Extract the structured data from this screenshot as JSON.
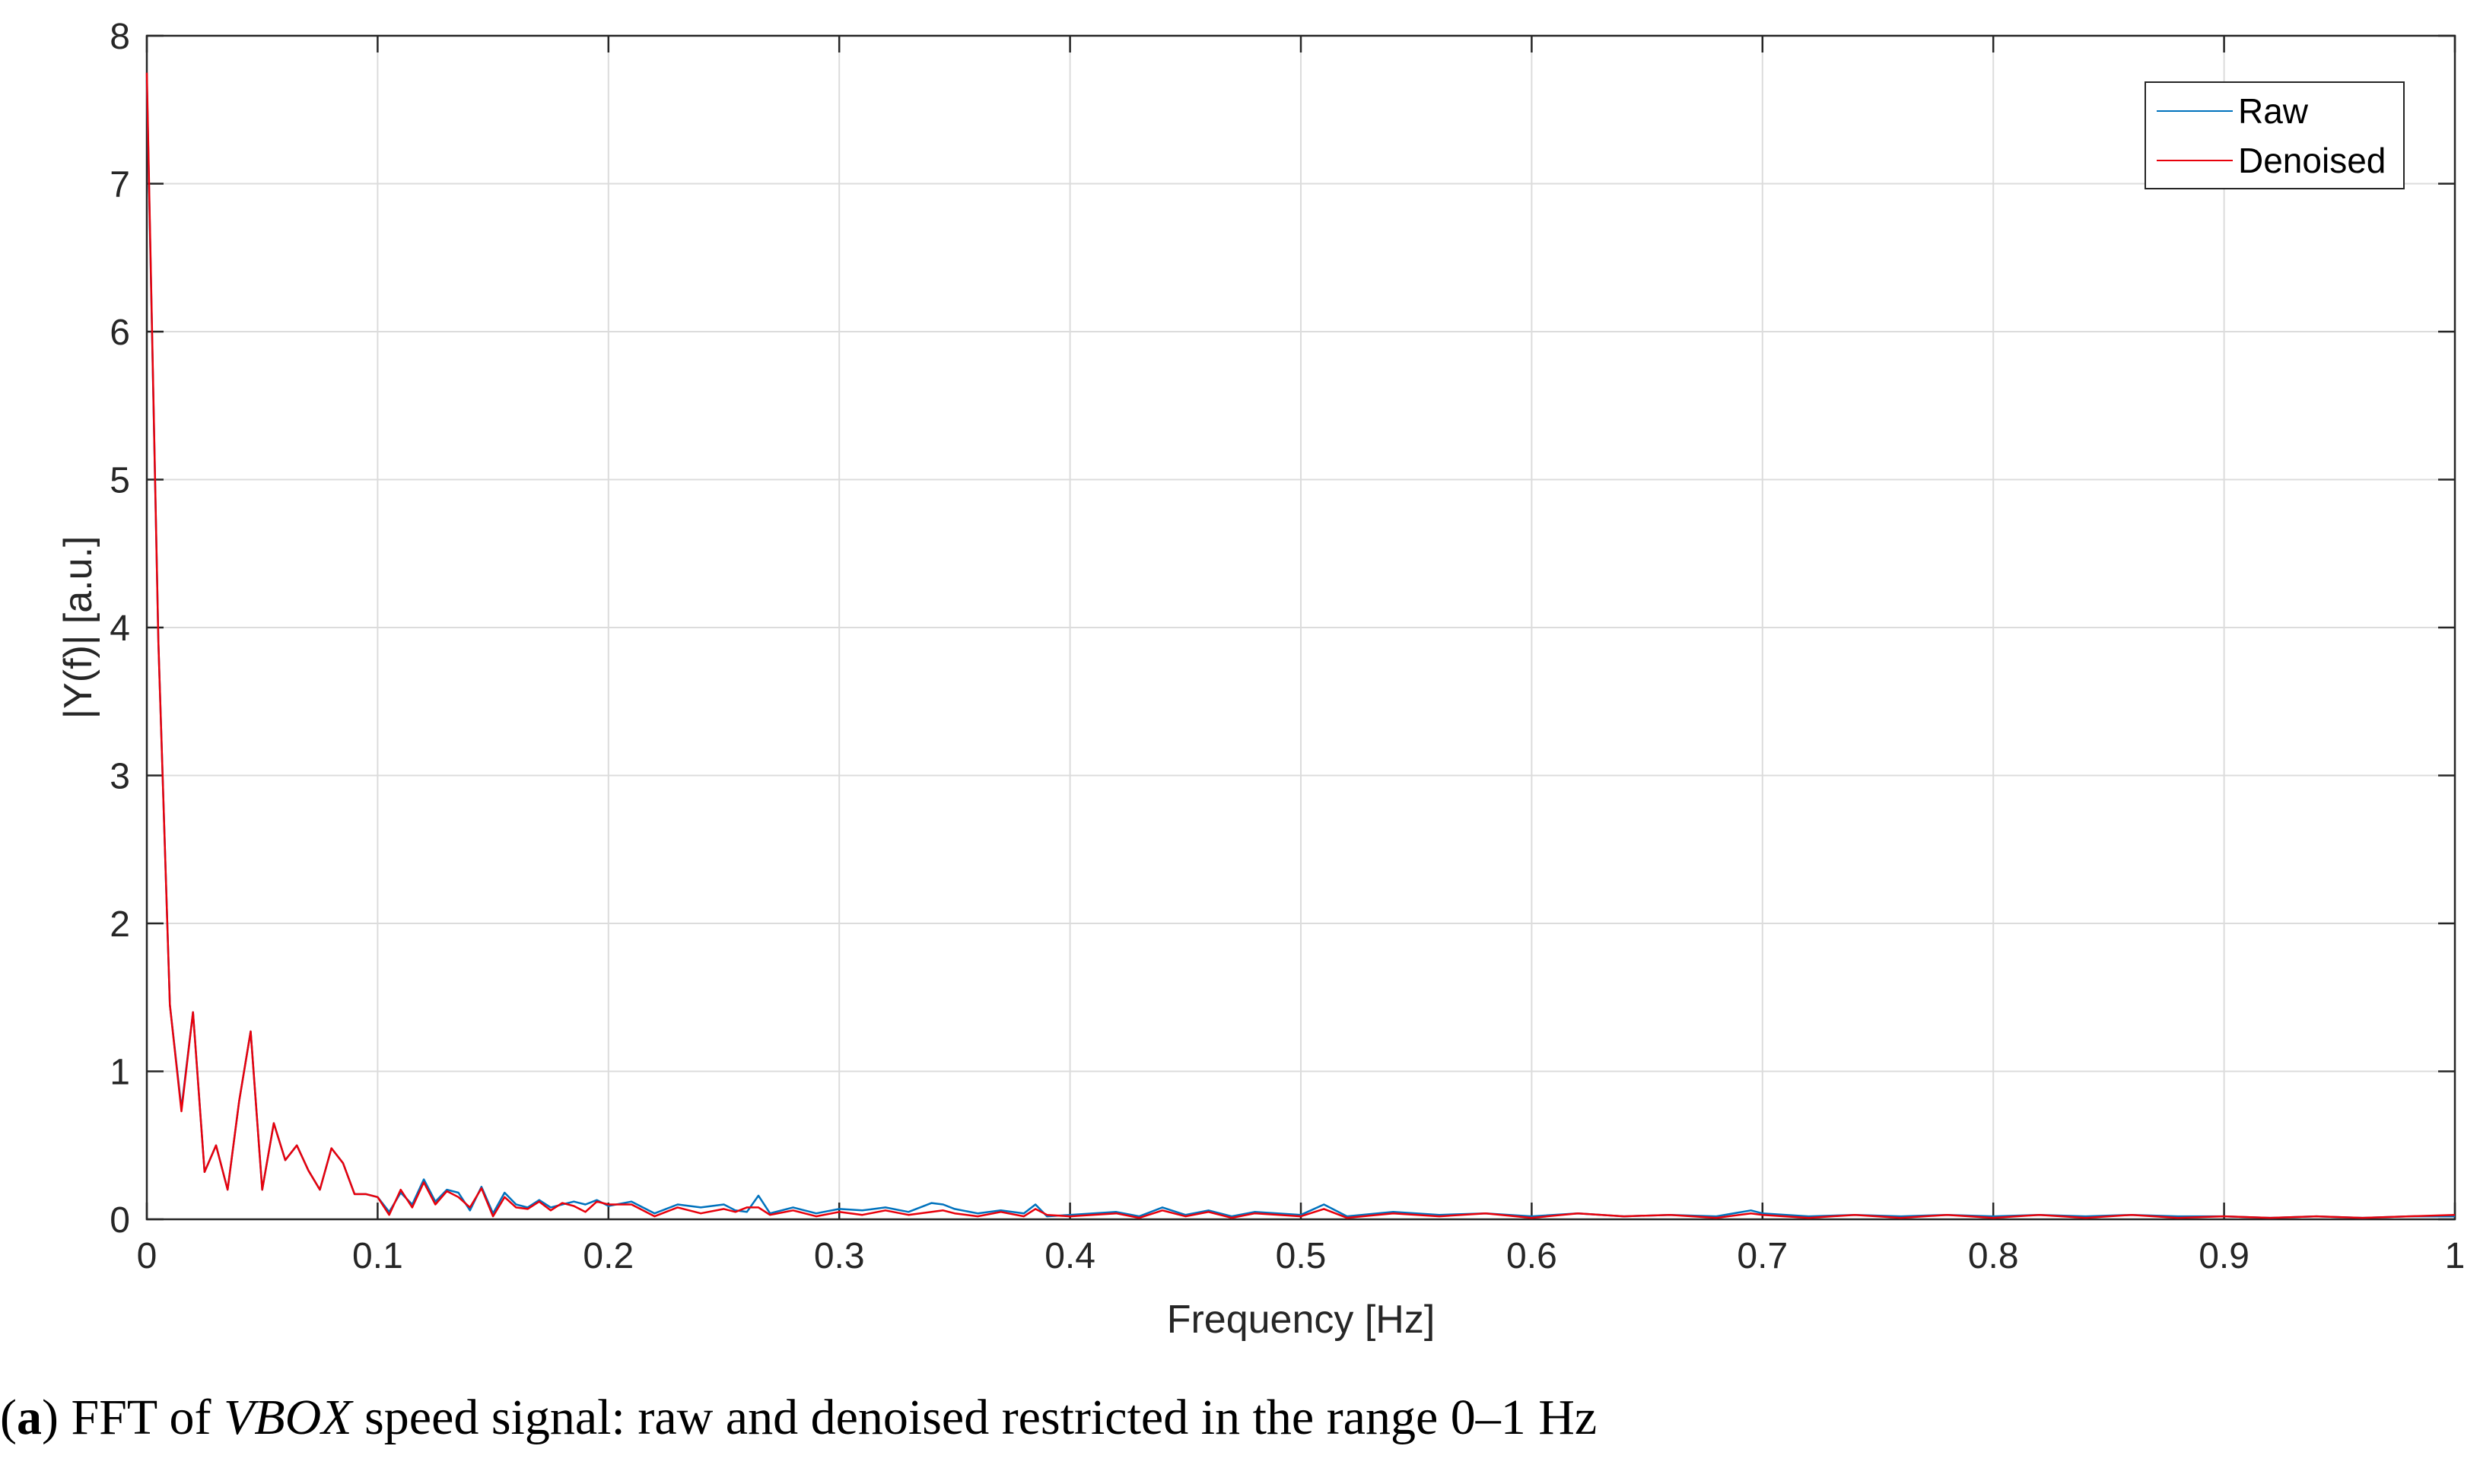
{
  "caption": {
    "open": "(",
    "letter": "a",
    "close": ") FFT of ",
    "italic": "VBOX",
    "rest": " speed signal: raw and denoised restricted in the range 0–1 Hz"
  },
  "colors": {
    "raw": "#0072BD",
    "denoised": "#E8000B"
  },
  "chart_data": {
    "type": "line",
    "title": "",
    "xlabel": "Frequency [Hz]",
    "ylabel": "|Y(f)| [a.u.]",
    "xlim": [
      0,
      1
    ],
    "ylim": [
      0,
      8
    ],
    "xticks": [
      "0",
      "0.1",
      "0.2",
      "0.3",
      "0.4",
      "0.5",
      "0.6",
      "0.7",
      "0.8",
      "0.9",
      "1"
    ],
    "yticks": [
      "0",
      "1",
      "2",
      "3",
      "4",
      "5",
      "6",
      "7",
      "8"
    ],
    "grid": true,
    "legend_position": "top-right",
    "series": [
      {
        "name": "Raw",
        "x": [
          0,
          0.005,
          0.01,
          0.015,
          0.02,
          0.025,
          0.03,
          0.035,
          0.04,
          0.045,
          0.05,
          0.055,
          0.06,
          0.065,
          0.07,
          0.075,
          0.08,
          0.085,
          0.09,
          0.095,
          0.1,
          0.105,
          0.11,
          0.115,
          0.12,
          0.125,
          0.13,
          0.135,
          0.14,
          0.145,
          0.15,
          0.155,
          0.16,
          0.165,
          0.17,
          0.175,
          0.18,
          0.185,
          0.19,
          0.195,
          0.2,
          0.21,
          0.22,
          0.23,
          0.24,
          0.25,
          0.255,
          0.26,
          0.265,
          0.27,
          0.28,
          0.29,
          0.3,
          0.31,
          0.32,
          0.33,
          0.34,
          0.345,
          0.35,
          0.36,
          0.37,
          0.38,
          0.385,
          0.39,
          0.4,
          0.42,
          0.43,
          0.44,
          0.45,
          0.46,
          0.47,
          0.48,
          0.5,
          0.51,
          0.52,
          0.54,
          0.56,
          0.58,
          0.6,
          0.62,
          0.64,
          0.66,
          0.68,
          0.695,
          0.7,
          0.72,
          0.74,
          0.76,
          0.78,
          0.8,
          0.82,
          0.84,
          0.86,
          0.88,
          0.9,
          0.92,
          0.94,
          0.96,
          0.98,
          1.0
        ],
        "y": [
          7.7,
          3.9,
          1.45,
          0.75,
          1.4,
          0.32,
          0.5,
          0.2,
          0.8,
          1.27,
          0.2,
          0.65,
          0.4,
          0.5,
          0.33,
          0.2,
          0.48,
          0.38,
          0.17,
          0.17,
          0.15,
          0.05,
          0.18,
          0.1,
          0.27,
          0.12,
          0.2,
          0.18,
          0.06,
          0.22,
          0.04,
          0.18,
          0.1,
          0.08,
          0.13,
          0.08,
          0.1,
          0.12,
          0.1,
          0.13,
          0.09,
          0.12,
          0.04,
          0.1,
          0.08,
          0.1,
          0.06,
          0.05,
          0.16,
          0.04,
          0.08,
          0.04,
          0.07,
          0.06,
          0.08,
          0.05,
          0.11,
          0.1,
          0.07,
          0.04,
          0.06,
          0.04,
          0.1,
          0.02,
          0.03,
          0.05,
          0.02,
          0.08,
          0.03,
          0.06,
          0.02,
          0.05,
          0.03,
          0.1,
          0.02,
          0.05,
          0.03,
          0.04,
          0.02,
          0.04,
          0.02,
          0.03,
          0.02,
          0.06,
          0.04,
          0.02,
          0.03,
          0.02,
          0.03,
          0.02,
          0.03,
          0.02,
          0.03,
          0.02,
          0.02,
          0.01,
          0.02,
          0.01,
          0.02,
          0.02
        ]
      },
      {
        "name": "Denoised",
        "x": [
          0,
          0.005,
          0.01,
          0.015,
          0.02,
          0.025,
          0.03,
          0.035,
          0.04,
          0.045,
          0.05,
          0.055,
          0.06,
          0.065,
          0.07,
          0.075,
          0.08,
          0.085,
          0.09,
          0.095,
          0.1,
          0.105,
          0.11,
          0.115,
          0.12,
          0.125,
          0.13,
          0.135,
          0.14,
          0.145,
          0.15,
          0.155,
          0.16,
          0.165,
          0.17,
          0.175,
          0.18,
          0.185,
          0.19,
          0.195,
          0.2,
          0.21,
          0.22,
          0.23,
          0.24,
          0.25,
          0.255,
          0.26,
          0.265,
          0.27,
          0.28,
          0.29,
          0.3,
          0.31,
          0.32,
          0.33,
          0.34,
          0.345,
          0.35,
          0.36,
          0.37,
          0.38,
          0.385,
          0.39,
          0.4,
          0.42,
          0.43,
          0.44,
          0.45,
          0.46,
          0.47,
          0.48,
          0.5,
          0.51,
          0.52,
          0.54,
          0.56,
          0.58,
          0.6,
          0.62,
          0.64,
          0.66,
          0.68,
          0.695,
          0.7,
          0.72,
          0.74,
          0.76,
          0.78,
          0.8,
          0.82,
          0.84,
          0.86,
          0.88,
          0.9,
          0.92,
          0.94,
          0.96,
          0.98,
          1.0
        ],
        "y": [
          7.75,
          3.9,
          1.45,
          0.73,
          1.4,
          0.32,
          0.5,
          0.2,
          0.8,
          1.27,
          0.2,
          0.65,
          0.4,
          0.5,
          0.33,
          0.2,
          0.48,
          0.38,
          0.17,
          0.17,
          0.15,
          0.03,
          0.2,
          0.08,
          0.25,
          0.1,
          0.19,
          0.15,
          0.08,
          0.21,
          0.02,
          0.15,
          0.08,
          0.07,
          0.12,
          0.06,
          0.11,
          0.09,
          0.05,
          0.12,
          0.1,
          0.1,
          0.02,
          0.08,
          0.04,
          0.07,
          0.05,
          0.08,
          0.08,
          0.03,
          0.06,
          0.02,
          0.05,
          0.03,
          0.06,
          0.03,
          0.05,
          0.06,
          0.04,
          0.02,
          0.05,
          0.02,
          0.07,
          0.03,
          0.02,
          0.04,
          0.01,
          0.06,
          0.02,
          0.05,
          0.01,
          0.04,
          0.02,
          0.07,
          0.01,
          0.04,
          0.02,
          0.04,
          0.01,
          0.04,
          0.02,
          0.03,
          0.01,
          0.04,
          0.03,
          0.01,
          0.03,
          0.01,
          0.03,
          0.01,
          0.03,
          0.01,
          0.03,
          0.01,
          0.02,
          0.01,
          0.02,
          0.01,
          0.02,
          0.03
        ]
      }
    ]
  }
}
